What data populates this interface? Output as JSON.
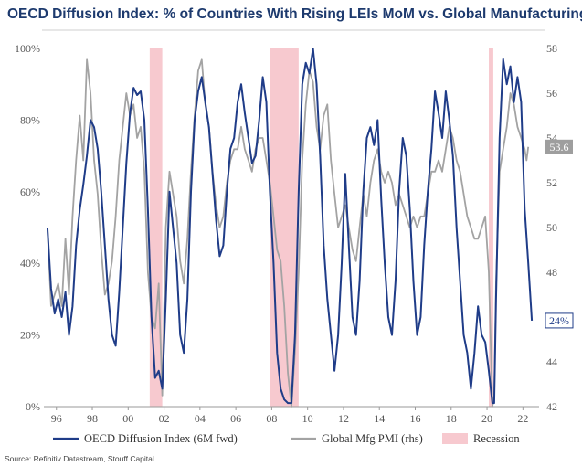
{
  "chart_data": {
    "type": "line",
    "title": "OECD Diffusion Index: % of Countries With Rising LEIs MoM vs. Global Manufacturing PMI",
    "source": "Source: Refinitiv Datastream, Stouff Capital",
    "x_range": [
      1995.3,
      2022.9
    ],
    "x_ticks": [
      1996,
      1998,
      2000,
      2002,
      2004,
      2006,
      2008,
      2010,
      2012,
      2014,
      2016,
      2018,
      2020,
      2022
    ],
    "x_tick_labels": [
      "96",
      "98",
      "00",
      "02",
      "04",
      "06",
      "08",
      "10",
      "12",
      "14",
      "16",
      "18",
      "20",
      "22"
    ],
    "y_left": {
      "range": [
        0,
        100
      ],
      "ticks": [
        0,
        20,
        40,
        60,
        80,
        100
      ],
      "tick_labels": [
        "0%",
        "20%",
        "40%",
        "60%",
        "80%",
        "100%"
      ]
    },
    "y_right": {
      "range": [
        42,
        58
      ],
      "ticks": [
        42,
        44,
        46,
        48,
        50,
        52,
        54,
        56,
        58
      ],
      "tick_labels": [
        "42",
        "44",
        "46",
        "48",
        "50",
        "52",
        "54",
        "56",
        "58"
      ]
    },
    "recessions": [
      [
        2001.2,
        2001.9
      ],
      [
        2007.9,
        2009.5
      ],
      [
        2020.1,
        2020.35
      ]
    ],
    "series": [
      {
        "name": "OECD Diffusion Index (6M fwd)",
        "axis": "left",
        "color": "#1f3c88",
        "end_label": "24%",
        "points": [
          [
            1995.5,
            50
          ],
          [
            1995.7,
            33
          ],
          [
            1995.9,
            26
          ],
          [
            1996.1,
            30
          ],
          [
            1996.3,
            25
          ],
          [
            1996.5,
            32
          ],
          [
            1996.7,
            20
          ],
          [
            1996.9,
            28
          ],
          [
            1997.1,
            45
          ],
          [
            1997.3,
            55
          ],
          [
            1997.5,
            62
          ],
          [
            1997.7,
            70
          ],
          [
            1997.9,
            80
          ],
          [
            1998.1,
            78
          ],
          [
            1998.3,
            72
          ],
          [
            1998.5,
            60
          ],
          [
            1998.7,
            45
          ],
          [
            1998.9,
            30
          ],
          [
            1999.1,
            20
          ],
          [
            1999.3,
            17
          ],
          [
            1999.5,
            32
          ],
          [
            1999.7,
            50
          ],
          [
            1999.9,
            68
          ],
          [
            2000.1,
            82
          ],
          [
            2000.3,
            89
          ],
          [
            2000.5,
            87
          ],
          [
            2000.7,
            88
          ],
          [
            2000.9,
            80
          ],
          [
            2001.1,
            55
          ],
          [
            2001.3,
            25
          ],
          [
            2001.5,
            8
          ],
          [
            2001.7,
            10
          ],
          [
            2001.9,
            5
          ],
          [
            2002.1,
            30
          ],
          [
            2002.3,
            60
          ],
          [
            2002.5,
            50
          ],
          [
            2002.7,
            40
          ],
          [
            2002.9,
            20
          ],
          [
            2003.1,
            15
          ],
          [
            2003.3,
            30
          ],
          [
            2003.5,
            60
          ],
          [
            2003.7,
            80
          ],
          [
            2003.9,
            88
          ],
          [
            2004.1,
            92
          ],
          [
            2004.3,
            85
          ],
          [
            2004.5,
            78
          ],
          [
            2004.7,
            65
          ],
          [
            2004.9,
            52
          ],
          [
            2005.1,
            42
          ],
          [
            2005.3,
            45
          ],
          [
            2005.5,
            60
          ],
          [
            2005.7,
            72
          ],
          [
            2005.9,
            75
          ],
          [
            2006.1,
            85
          ],
          [
            2006.3,
            90
          ],
          [
            2006.5,
            82
          ],
          [
            2006.7,
            75
          ],
          [
            2006.9,
            68
          ],
          [
            2007.1,
            70
          ],
          [
            2007.3,
            80
          ],
          [
            2007.5,
            92
          ],
          [
            2007.7,
            85
          ],
          [
            2007.9,
            60
          ],
          [
            2008.1,
            40
          ],
          [
            2008.3,
            15
          ],
          [
            2008.5,
            5
          ],
          [
            2008.7,
            2
          ],
          [
            2008.9,
            1
          ],
          [
            2009.1,
            1
          ],
          [
            2009.3,
            20
          ],
          [
            2009.5,
            60
          ],
          [
            2009.7,
            90
          ],
          [
            2009.9,
            96
          ],
          [
            2010.1,
            93
          ],
          [
            2010.3,
            100
          ],
          [
            2010.5,
            90
          ],
          [
            2010.7,
            70
          ],
          [
            2010.9,
            45
          ],
          [
            2011.1,
            30
          ],
          [
            2011.3,
            20
          ],
          [
            2011.5,
            10
          ],
          [
            2011.7,
            20
          ],
          [
            2011.9,
            40
          ],
          [
            2012.1,
            65
          ],
          [
            2012.3,
            45
          ],
          [
            2012.5,
            25
          ],
          [
            2012.7,
            20
          ],
          [
            2012.9,
            35
          ],
          [
            2013.1,
            60
          ],
          [
            2013.3,
            75
          ],
          [
            2013.5,
            78
          ],
          [
            2013.7,
            73
          ],
          [
            2013.9,
            80
          ],
          [
            2014.1,
            58
          ],
          [
            2014.3,
            40
          ],
          [
            2014.5,
            25
          ],
          [
            2014.7,
            20
          ],
          [
            2014.9,
            35
          ],
          [
            2015.1,
            60
          ],
          [
            2015.3,
            75
          ],
          [
            2015.5,
            70
          ],
          [
            2015.7,
            55
          ],
          [
            2015.9,
            35
          ],
          [
            2016.1,
            20
          ],
          [
            2016.3,
            25
          ],
          [
            2016.5,
            45
          ],
          [
            2016.7,
            60
          ],
          [
            2016.9,
            72
          ],
          [
            2017.1,
            88
          ],
          [
            2017.3,
            82
          ],
          [
            2017.5,
            75
          ],
          [
            2017.7,
            88
          ],
          [
            2017.9,
            80
          ],
          [
            2018.1,
            70
          ],
          [
            2018.3,
            50
          ],
          [
            2018.5,
            35
          ],
          [
            2018.7,
            20
          ],
          [
            2018.9,
            15
          ],
          [
            2019.1,
            5
          ],
          [
            2019.3,
            15
          ],
          [
            2019.5,
            28
          ],
          [
            2019.7,
            20
          ],
          [
            2019.9,
            18
          ],
          [
            2020.1,
            10
          ],
          [
            2020.3,
            1
          ],
          [
            2020.4,
            1
          ],
          [
            2020.5,
            30
          ],
          [
            2020.7,
            75
          ],
          [
            2020.9,
            97
          ],
          [
            2021.1,
            90
          ],
          [
            2021.3,
            95
          ],
          [
            2021.5,
            85
          ],
          [
            2021.7,
            92
          ],
          [
            2021.9,
            85
          ],
          [
            2022.1,
            55
          ],
          [
            2022.3,
            40
          ],
          [
            2022.5,
            24
          ]
        ]
      },
      {
        "name": "Global Mfg PMI (rhs)",
        "axis": "right",
        "color": "#a3a3a3",
        "end_label": "53.6",
        "points": [
          [
            1995.5,
            50.0
          ],
          [
            1995.7,
            46.5
          ],
          [
            1995.9,
            47.0
          ],
          [
            1996.1,
            47.5
          ],
          [
            1996.3,
            46.5
          ],
          [
            1996.5,
            49.5
          ],
          [
            1996.7,
            47.0
          ],
          [
            1996.9,
            50.5
          ],
          [
            1997.1,
            53.0
          ],
          [
            1997.3,
            55.0
          ],
          [
            1997.5,
            53.0
          ],
          [
            1997.7,
            57.5
          ],
          [
            1997.9,
            56.0
          ],
          [
            1998.1,
            53.0
          ],
          [
            1998.3,
            51.5
          ],
          [
            1998.5,
            49.0
          ],
          [
            1998.7,
            47.0
          ],
          [
            1998.9,
            47.5
          ],
          [
            1999.1,
            48.5
          ],
          [
            1999.3,
            50.5
          ],
          [
            1999.5,
            53.0
          ],
          [
            1999.7,
            54.5
          ],
          [
            1999.9,
            56.0
          ],
          [
            2000.1,
            55.0
          ],
          [
            2000.3,
            55.5
          ],
          [
            2000.5,
            54.0
          ],
          [
            2000.7,
            54.5
          ],
          [
            2000.9,
            52.5
          ],
          [
            2001.1,
            48.0
          ],
          [
            2001.3,
            46.0
          ],
          [
            2001.5,
            45.5
          ],
          [
            2001.7,
            47.5
          ],
          [
            2001.9,
            42.5
          ],
          [
            2002.1,
            50.0
          ],
          [
            2002.3,
            52.5
          ],
          [
            2002.5,
            51.5
          ],
          [
            2002.7,
            50.5
          ],
          [
            2002.9,
            48.5
          ],
          [
            2003.1,
            47.5
          ],
          [
            2003.3,
            49.5
          ],
          [
            2003.5,
            52.5
          ],
          [
            2003.7,
            55.0
          ],
          [
            2003.9,
            57.0
          ],
          [
            2004.1,
            57.5
          ],
          [
            2004.3,
            55.5
          ],
          [
            2004.5,
            54.5
          ],
          [
            2004.7,
            52.5
          ],
          [
            2004.9,
            51.0
          ],
          [
            2005.1,
            50.0
          ],
          [
            2005.3,
            50.5
          ],
          [
            2005.5,
            52.0
          ],
          [
            2005.7,
            53.0
          ],
          [
            2005.9,
            53.5
          ],
          [
            2006.1,
            53.5
          ],
          [
            2006.3,
            54.5
          ],
          [
            2006.5,
            53.5
          ],
          [
            2006.7,
            53.0
          ],
          [
            2006.9,
            52.5
          ],
          [
            2007.1,
            53.5
          ],
          [
            2007.3,
            54.0
          ],
          [
            2007.5,
            54.0
          ],
          [
            2007.7,
            53.0
          ],
          [
            2007.9,
            52.0
          ],
          [
            2008.1,
            50.5
          ],
          [
            2008.3,
            49.0
          ],
          [
            2008.5,
            48.5
          ],
          [
            2008.7,
            46.5
          ],
          [
            2008.9,
            43.5
          ],
          [
            2009.1,
            42.0
          ],
          [
            2009.3,
            44.5
          ],
          [
            2009.5,
            48.0
          ],
          [
            2009.7,
            53.0
          ],
          [
            2009.9,
            55.5
          ],
          [
            2010.1,
            57.0
          ],
          [
            2010.3,
            56.5
          ],
          [
            2010.5,
            54.5
          ],
          [
            2010.7,
            53.5
          ],
          [
            2010.9,
            55.0
          ],
          [
            2011.1,
            55.5
          ],
          [
            2011.3,
            53.0
          ],
          [
            2011.5,
            51.5
          ],
          [
            2011.7,
            50.0
          ],
          [
            2011.9,
            50.5
          ],
          [
            2012.1,
            51.0
          ],
          [
            2012.3,
            50.0
          ],
          [
            2012.5,
            49.0
          ],
          [
            2012.7,
            48.5
          ],
          [
            2012.9,
            50.0
          ],
          [
            2013.1,
            51.5
          ],
          [
            2013.3,
            50.5
          ],
          [
            2013.5,
            52.0
          ],
          [
            2013.7,
            53.0
          ],
          [
            2013.9,
            53.5
          ],
          [
            2014.1,
            52.5
          ],
          [
            2014.3,
            52.0
          ],
          [
            2014.5,
            52.5
          ],
          [
            2014.7,
            52.0
          ],
          [
            2014.9,
            51.0
          ],
          [
            2015.1,
            51.5
          ],
          [
            2015.3,
            51.0
          ],
          [
            2015.5,
            50.5
          ],
          [
            2015.7,
            50.0
          ],
          [
            2015.9,
            50.5
          ],
          [
            2016.1,
            50.0
          ],
          [
            2016.3,
            50.5
          ],
          [
            2016.5,
            50.5
          ],
          [
            2016.7,
            51.5
          ],
          [
            2016.9,
            52.5
          ],
          [
            2017.1,
            52.5
          ],
          [
            2017.3,
            53.0
          ],
          [
            2017.5,
            52.5
          ],
          [
            2017.7,
            53.5
          ],
          [
            2017.9,
            54.5
          ],
          [
            2018.1,
            54.0
          ],
          [
            2018.3,
            53.0
          ],
          [
            2018.5,
            52.5
          ],
          [
            2018.7,
            51.5
          ],
          [
            2018.9,
            50.5
          ],
          [
            2019.1,
            50.0
          ],
          [
            2019.3,
            49.5
          ],
          [
            2019.5,
            49.5
          ],
          [
            2019.7,
            50.0
          ],
          [
            2019.9,
            50.5
          ],
          [
            2020.1,
            48.0
          ],
          [
            2020.3,
            42.0
          ],
          [
            2020.4,
            42.5
          ],
          [
            2020.5,
            47.5
          ],
          [
            2020.7,
            52.5
          ],
          [
            2020.9,
            53.5
          ],
          [
            2021.1,
            54.5
          ],
          [
            2021.3,
            56.0
          ],
          [
            2021.5,
            55.5
          ],
          [
            2021.7,
            54.5
          ],
          [
            2021.9,
            54.0
          ],
          [
            2022.1,
            53.5
          ],
          [
            2022.2,
            53.0
          ],
          [
            2022.3,
            53.6
          ]
        ]
      }
    ],
    "legend": [
      {
        "label": "OECD Diffusion Index (6M fwd)",
        "kind": "line",
        "color": "#1f3c88"
      },
      {
        "label": "Global Mfg PMI (rhs)",
        "kind": "line",
        "color": "#a3a3a3"
      },
      {
        "label": "Recession",
        "kind": "box",
        "color": "#f7c9cf"
      }
    ]
  }
}
